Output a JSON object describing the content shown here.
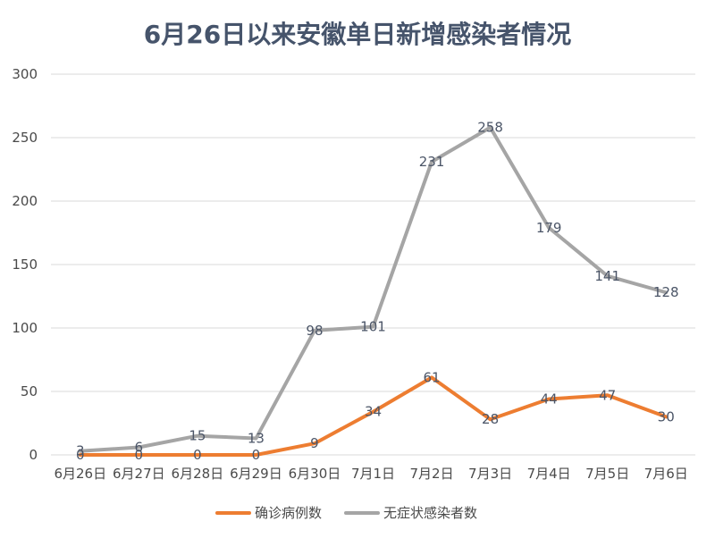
{
  "chart_data": {
    "type": "line",
    "title": "6月26日以来安徽单日新增感染者情况",
    "xlabel": "",
    "ylabel": "",
    "categories": [
      "6月26日",
      "6月27日",
      "6月28日",
      "6月29日",
      "6月30日",
      "7月1日",
      "7月2日",
      "7月3日",
      "7月4日",
      "7月5日",
      "7月6日"
    ],
    "ylim": [
      0,
      300
    ],
    "yticks": [
      0,
      50,
      100,
      150,
      200,
      250,
      300
    ],
    "grid": true,
    "legend_position": "bottom",
    "series": [
      {
        "name": "确诊病例数",
        "color": "#ed7d31",
        "values": [
          0,
          0,
          0,
          0,
          9,
          34,
          61,
          28,
          44,
          47,
          30
        ]
      },
      {
        "name": "无症状感染者数",
        "color": "#a5a5a5",
        "values": [
          3,
          6,
          15,
          13,
          98,
          101,
          231,
          258,
          179,
          141,
          128
        ]
      }
    ]
  }
}
